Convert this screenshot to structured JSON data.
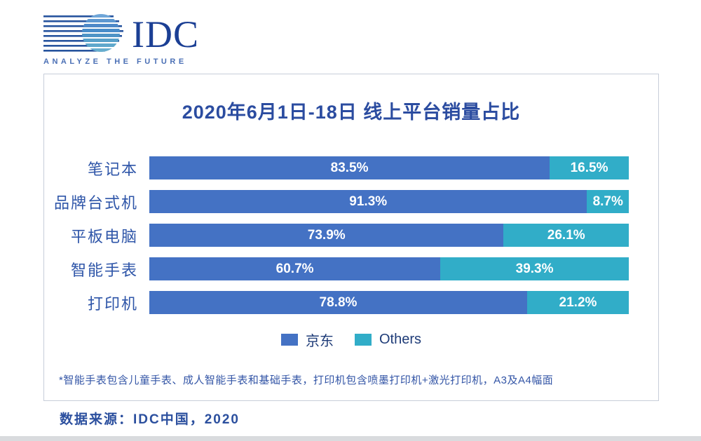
{
  "logo": {
    "text": "IDC",
    "tagline": "ANALYZE THE FUTURE"
  },
  "chart_data": {
    "type": "bar",
    "orientation": "horizontal-stacked",
    "title": "2020年6月1日-18日 线上平台销量占比",
    "categories": [
      "笔记本",
      "品牌台式机",
      "平板电脑",
      "智能手表",
      "打印机"
    ],
    "series": [
      {
        "name": "京东",
        "color": "#4472C4",
        "values": [
          83.5,
          91.3,
          73.9,
          60.7,
          78.8
        ],
        "labels": [
          "83.5%",
          "91.3%",
          "73.9%",
          "60.7%",
          "78.8%"
        ]
      },
      {
        "name": "Others",
        "color": "#31ADC8",
        "values": [
          16.5,
          8.7,
          26.1,
          39.3,
          21.2
        ],
        "labels": [
          "16.5%",
          "8.7%",
          "26.1%",
          "39.3%",
          "21.2%"
        ]
      }
    ],
    "value_format": "percent",
    "xlim": [
      0,
      100
    ],
    "grid": false,
    "legend_position": "bottom"
  },
  "footnote": "*智能手表包含儿童手表、成人智能手表和基础手表，打印机包含喷墨打印机+激光打印机，A3及A4幅面",
  "source": "数据来源：IDC中国，2020",
  "colors": {
    "jd_blue": "#4472C4",
    "others_teal": "#31ADC8",
    "title_navy": "#2B4CA0",
    "label_blue": "#2E55A8",
    "logo_navy": "#1B3F94"
  }
}
